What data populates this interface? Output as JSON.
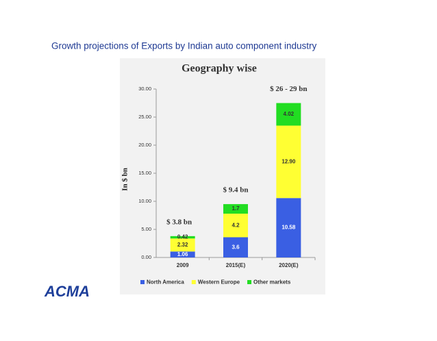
{
  "slide_title": "Growth projections of Exports by Indian auto component industry",
  "logo": "ACMA",
  "chart_data": {
    "type": "stacked_bar",
    "title": "Geography wise",
    "y_label": "In $ bn",
    "categories": [
      "2009",
      "2015(E)",
      "2020(E)"
    ],
    "series": [
      {
        "name": "North America",
        "color": "#3a5fe3",
        "values": [
          1.06,
          3.6,
          10.58
        ],
        "value_labels": [
          "1.06",
          "3.6",
          "10.58"
        ]
      },
      {
        "name": "Western Europe",
        "color": "#ffff33",
        "values": [
          2.32,
          4.2,
          12.9
        ],
        "value_labels": [
          "2.32",
          "4.2",
          "12.90"
        ]
      },
      {
        "name": "Other markets",
        "color": "#22dd22",
        "values": [
          0.42,
          1.7,
          4.02
        ],
        "value_labels": [
          "0.42",
          "1.7",
          "4.02"
        ]
      }
    ],
    "annotations": [
      "$ 3.8 bn",
      "$ 9.4 bn",
      "$ 26 - 29 bn"
    ],
    "ylim": [
      0,
      30
    ],
    "yticks": [
      {
        "value": 0,
        "label": "0.00"
      },
      {
        "value": 5,
        "label": "5.00"
      },
      {
        "value": 10,
        "label": "10.00"
      },
      {
        "value": 15,
        "label": "15.00"
      },
      {
        "value": 20,
        "label": "20.00"
      },
      {
        "value": 25,
        "label": "25.00"
      },
      {
        "value": 30,
        "label": "30.00"
      }
    ],
    "legend": "bottom"
  }
}
